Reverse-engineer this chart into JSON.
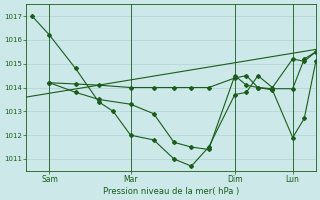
{
  "background_color": "#cce8e8",
  "grid_color": "#aacccc",
  "line_color": "#1a5c1a",
  "marker_color": "#1a5c1a",
  "xlabel": "Pression niveau de la mer( hPa )",
  "ylim": [
    1010.5,
    1017.5
  ],
  "yticks": [
    1011,
    1012,
    1013,
    1014,
    1015,
    1016,
    1017
  ],
  "xtick_labels": [
    "Sam",
    "Mar",
    "Dim",
    "Lun"
  ],
  "xtick_positions": [
    8,
    36,
    72,
    92
  ],
  "xlim": [
    0,
    100
  ],
  "vline_positions": [
    8,
    36,
    72,
    92
  ],
  "series1_x": [
    2,
    8,
    17,
    25,
    30,
    36,
    44,
    51,
    57,
    63,
    72,
    76,
    80,
    85,
    92,
    96,
    100
  ],
  "series1_y": [
    1017.0,
    1016.2,
    1014.8,
    1013.4,
    1013.0,
    1012.0,
    1011.8,
    1011.0,
    1010.7,
    1011.5,
    1013.7,
    1013.8,
    1014.5,
    1014.0,
    1015.2,
    1015.1,
    1015.5
  ],
  "series2_x": [
    8,
    17,
    25,
    36,
    44,
    51,
    57,
    63,
    72,
    76,
    80,
    85,
    92,
    96,
    100
  ],
  "series2_y": [
    1014.2,
    1014.15,
    1014.1,
    1014.0,
    1014.0,
    1014.0,
    1014.0,
    1014.0,
    1014.4,
    1014.5,
    1014.0,
    1013.95,
    1013.95,
    1015.2,
    1015.5
  ],
  "series3_x": [
    8,
    17,
    25,
    36,
    44,
    51,
    57,
    63,
    72,
    76,
    80,
    85,
    92,
    96,
    100
  ],
  "series3_y": [
    1014.2,
    1013.8,
    1013.5,
    1013.3,
    1012.9,
    1011.7,
    1011.5,
    1011.4,
    1014.5,
    1014.1,
    1014.0,
    1013.9,
    1011.9,
    1012.7,
    1015.1
  ],
  "trendline_x": [
    0,
    100
  ],
  "trendline_y": [
    1013.6,
    1015.6
  ]
}
